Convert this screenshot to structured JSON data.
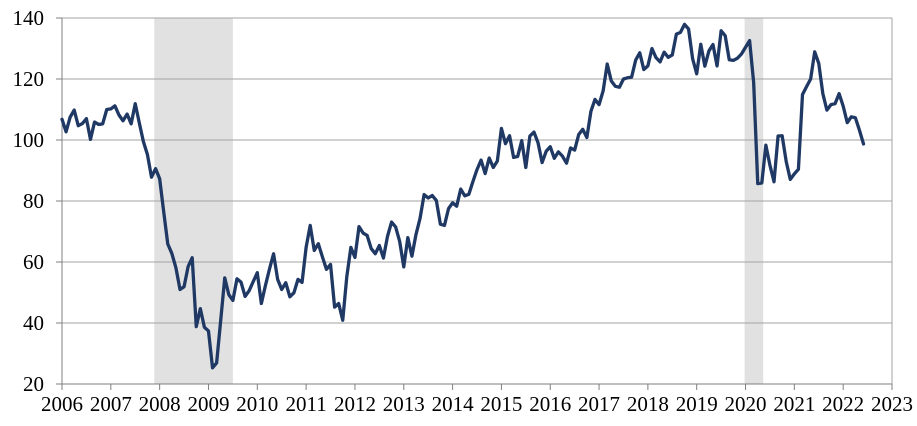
{
  "chart_data": {
    "type": "line",
    "title": "",
    "xlabel": "",
    "ylabel": "",
    "frequency": "monthly",
    "grid": "horizontal",
    "legend": "none",
    "x_axis": {
      "min": 2006,
      "max": 2023,
      "tick_labels": [
        "2006",
        "2007",
        "2008",
        "2009",
        "2010",
        "2011",
        "2012",
        "2013",
        "2014",
        "2015",
        "2016",
        "2017",
        "2018",
        "2019",
        "2020",
        "2021",
        "2022",
        "2023"
      ]
    },
    "y_axis": {
      "min": 20,
      "max": 140,
      "tick_interval": 20,
      "tick_labels": [
        "20",
        "40",
        "60",
        "80",
        "100",
        "120",
        "140"
      ]
    },
    "series": [
      {
        "name": "",
        "start_year": 2006,
        "start_month": 1,
        "end_label": "2022-06",
        "values": [
          106.8,
          102.7,
          107.5,
          109.8,
          104.7,
          105.4,
          107.0,
          100.2,
          105.9,
          105.1,
          105.3,
          110.0,
          110.2,
          111.2,
          108.2,
          106.3,
          108.5,
          105.3,
          111.9,
          105.6,
          99.5,
          95.2,
          87.8,
          90.6,
          87.3,
          76.4,
          65.9,
          62.8,
          58.1,
          51.0,
          51.9,
          58.5,
          61.4,
          38.8,
          44.7,
          38.6,
          37.4,
          25.3,
          26.9,
          40.8,
          54.8,
          49.3,
          47.4,
          54.5,
          53.4,
          48.7,
          50.6,
          53.6,
          56.5,
          46.4,
          52.3,
          57.7,
          62.7,
          54.3,
          51.0,
          53.2,
          48.6,
          49.9,
          54.3,
          53.3,
          64.8,
          72.0,
          63.8,
          66.0,
          61.7,
          57.6,
          59.2,
          45.2,
          46.4,
          40.9,
          55.2,
          64.8,
          61.5,
          71.6,
          69.5,
          68.7,
          64.4,
          62.7,
          65.4,
          61.3,
          68.4,
          73.1,
          71.5,
          66.7,
          58.4,
          68.0,
          61.9,
          69.0,
          74.3,
          82.1,
          81.0,
          81.8,
          80.2,
          72.4,
          72.0,
          77.5,
          79.4,
          78.3,
          83.9,
          81.7,
          82.2,
          86.4,
          90.3,
          93.4,
          89.0,
          94.1,
          91.0,
          93.1,
          103.8,
          98.8,
          101.4,
          94.3,
          94.6,
          99.8,
          91.0,
          101.3,
          102.6,
          99.1,
          92.6,
          96.3,
          97.8,
          94.0,
          96.1,
          94.7,
          92.4,
          97.4,
          96.7,
          101.8,
          103.5,
          100.8,
          109.4,
          113.3,
          111.6,
          116.1,
          124.9,
          119.4,
          117.6,
          117.3,
          120.0,
          120.4,
          120.6,
          126.2,
          128.6,
          123.1,
          124.3,
          130.0,
          127.0,
          125.6,
          128.8,
          127.1,
          127.9,
          134.7,
          135.3,
          137.9,
          136.4,
          126.6,
          121.7,
          131.4,
          124.2,
          129.2,
          131.3,
          124.3,
          135.8,
          134.2,
          126.3,
          126.1,
          126.8,
          128.2,
          130.4,
          132.6,
          118.8,
          85.7,
          85.9,
          98.3,
          91.7,
          86.3,
          101.3,
          101.4,
          92.9,
          87.1,
          88.9,
          90.4,
          114.9,
          117.5,
          120.0,
          128.9,
          125.1,
          115.2,
          109.8,
          111.6,
          111.9,
          115.2,
          111.1,
          105.7,
          107.6,
          107.3,
          103.2,
          98.7
        ]
      }
    ],
    "recession_bands": [
      {
        "label": "Dec 2007 - Jun 2009",
        "x_start": 2007.89,
        "x_end": 2009.5
      },
      {
        "label": "Feb 2020 - Apr 2020",
        "x_start": 2019.98,
        "x_end": 2020.36
      }
    ],
    "colors": {
      "line": "#1f3864",
      "recession_band": "#e1e1e1",
      "gridline": "#a3a3a3",
      "axis": "#7f7f7f",
      "tick_label": "#000000",
      "background": "#ffffff"
    }
  }
}
